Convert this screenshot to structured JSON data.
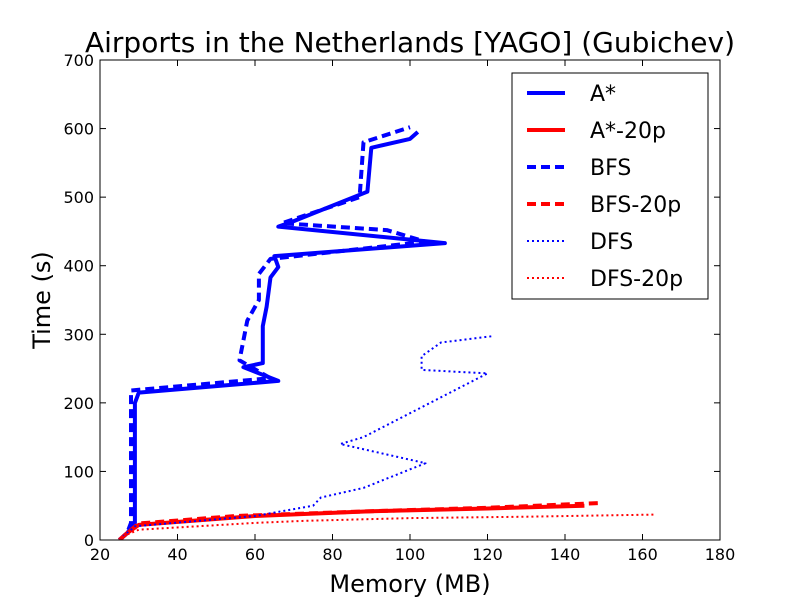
{
  "chart_data": {
    "type": "line",
    "title": "Airports in the Netherlands [YAGO] (Gubichev)",
    "xlabel": "Memory (MB)",
    "ylabel": "Time (s)",
    "xlim": [
      20,
      180
    ],
    "ylim": [
      0,
      700
    ],
    "xticks": [
      20,
      40,
      60,
      80,
      100,
      120,
      140,
      160,
      180
    ],
    "yticks": [
      0,
      100,
      200,
      300,
      400,
      500,
      600,
      700
    ],
    "grid": false,
    "legend_position": "top-right",
    "series": [
      {
        "name": "A*",
        "color": "#0000ff",
        "style": "solid",
        "width": 4,
        "points": [
          [
            25,
            0
          ],
          [
            27,
            10
          ],
          [
            29,
            25
          ],
          [
            29,
            200
          ],
          [
            30,
            215
          ],
          [
            66,
            232
          ],
          [
            57,
            252
          ],
          [
            62,
            258
          ],
          [
            62,
            312
          ],
          [
            63,
            340
          ],
          [
            64,
            383
          ],
          [
            66,
            398
          ],
          [
            65,
            414
          ],
          [
            109,
            433
          ],
          [
            66,
            457
          ],
          [
            70,
            465
          ],
          [
            89,
            508
          ],
          [
            90,
            572
          ],
          [
            100,
            585
          ],
          [
            102,
            595
          ]
        ]
      },
      {
        "name": "A*-20p",
        "color": "#ff0000",
        "style": "solid",
        "width": 4,
        "points": [
          [
            25,
            0
          ],
          [
            27,
            10
          ],
          [
            30,
            22
          ],
          [
            60,
            35
          ],
          [
            90,
            42
          ],
          [
            120,
            46
          ],
          [
            145,
            50
          ]
        ]
      },
      {
        "name": "BFS",
        "color": "#0000ff",
        "style": "dashed",
        "width": 4,
        "points": [
          [
            25,
            0
          ],
          [
            27,
            10
          ],
          [
            28,
            25
          ],
          [
            28,
            218
          ],
          [
            64,
            236
          ],
          [
            56,
            262
          ],
          [
            58,
            320
          ],
          [
            61,
            350
          ],
          [
            61,
            388
          ],
          [
            64,
            410
          ],
          [
            104,
            435
          ],
          [
            94,
            452
          ],
          [
            67,
            462
          ],
          [
            87,
            500
          ],
          [
            88,
            580
          ],
          [
            100,
            602
          ]
        ]
      },
      {
        "name": "BFS-20p",
        "color": "#ff0000",
        "style": "dashed",
        "width": 4,
        "points": [
          [
            25,
            0
          ],
          [
            27,
            10
          ],
          [
            30,
            24
          ],
          [
            55,
            35
          ],
          [
            90,
            42
          ],
          [
            120,
            47
          ],
          [
            149,
            54
          ]
        ]
      },
      {
        "name": "DFS",
        "color": "#0000ff",
        "style": "dotted",
        "width": 2,
        "points": [
          [
            25,
            0
          ],
          [
            27,
            10
          ],
          [
            29,
            20
          ],
          [
            60,
            35
          ],
          [
            75,
            50
          ],
          [
            77,
            62
          ],
          [
            88,
            76
          ],
          [
            104,
            112
          ],
          [
            82,
            140
          ],
          [
            88,
            150
          ],
          [
            120,
            243
          ],
          [
            103,
            248
          ],
          [
            103,
            268
          ],
          [
            108,
            288
          ],
          [
            121,
            297
          ]
        ]
      },
      {
        "name": "DFS-20p",
        "color": "#ff0000",
        "style": "dotted",
        "width": 2,
        "points": [
          [
            25,
            0
          ],
          [
            27,
            8
          ],
          [
            30,
            15
          ],
          [
            60,
            25
          ],
          [
            73,
            28
          ],
          [
            100,
            32
          ],
          [
            130,
            34
          ],
          [
            163,
            37
          ]
        ]
      }
    ]
  }
}
